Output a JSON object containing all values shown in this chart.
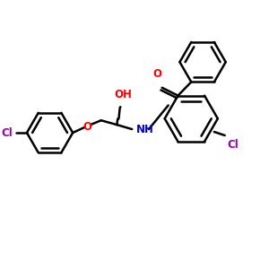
{
  "bg_color": "#ffffff",
  "line_color": "#000000",
  "bond_width": 1.8,
  "chloro_left_label": "Cl",
  "chloro_left_color": "#9900aa",
  "chloro_right_label": "Cl",
  "chloro_right_color": "#9900aa",
  "oxygen_label": "O",
  "oxygen_color": "#ff0000",
  "oh_label": "OH",
  "oh_color": "#ff0000",
  "nh_label": "NH",
  "nh_color": "#0000cc",
  "co_label": "O",
  "co_color": "#ff0000",
  "figsize": [
    3.0,
    3.0
  ],
  "dpi": 100
}
